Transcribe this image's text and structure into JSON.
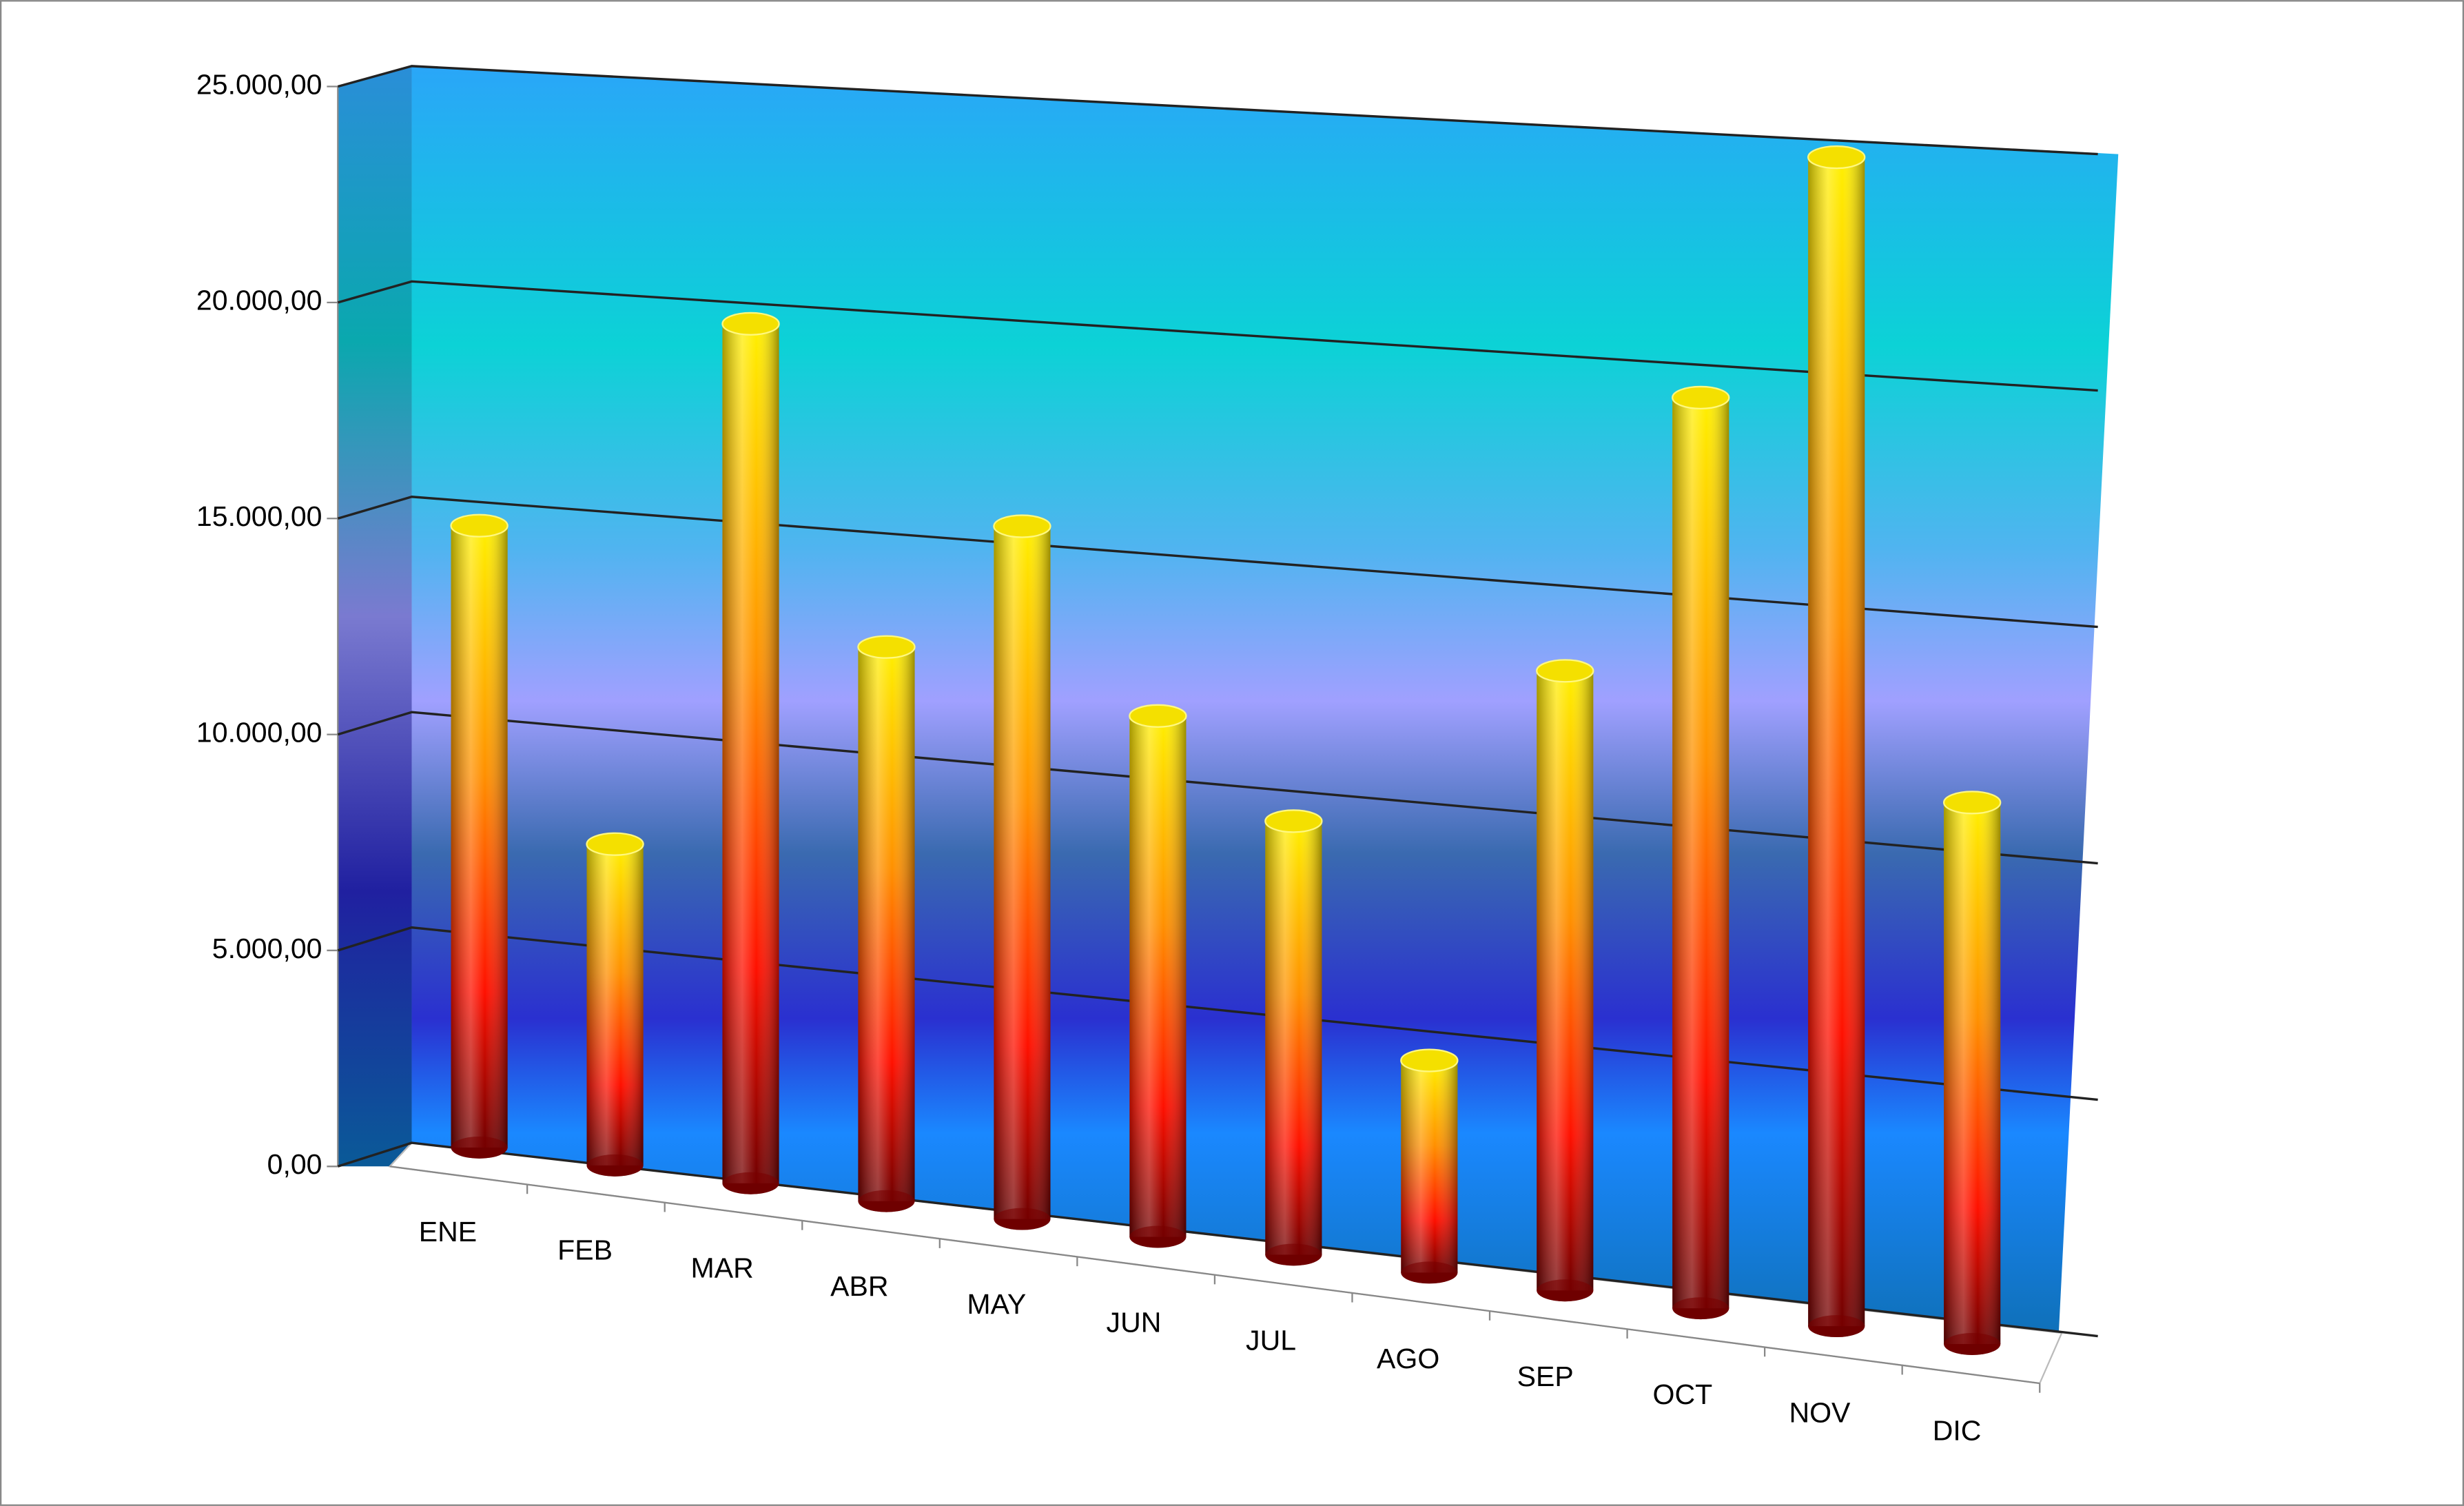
{
  "chart_data": {
    "type": "bar",
    "categories": [
      "ENE",
      "FEB",
      "MAR",
      "ABR",
      "MAY",
      "JUN",
      "JUL",
      "AGO",
      "SEP",
      "OCT",
      "NOV",
      "DIC"
    ],
    "values": [
      14300,
      7300,
      19300,
      12300,
      15200,
      11300,
      9300,
      4500,
      13000,
      18900,
      24000,
      11000
    ],
    "ylim": [
      0,
      25000
    ],
    "yticks": [
      {
        "value": 0,
        "label": "0,00"
      },
      {
        "value": 5000,
        "label": "5.000,00"
      },
      {
        "value": 10000,
        "label": "10.000,00"
      },
      {
        "value": 15000,
        "label": "15.000,00"
      },
      {
        "value": 20000,
        "label": "20.000,00"
      },
      {
        "value": 25000,
        "label": "25.000,00"
      }
    ],
    "grid": true
  }
}
